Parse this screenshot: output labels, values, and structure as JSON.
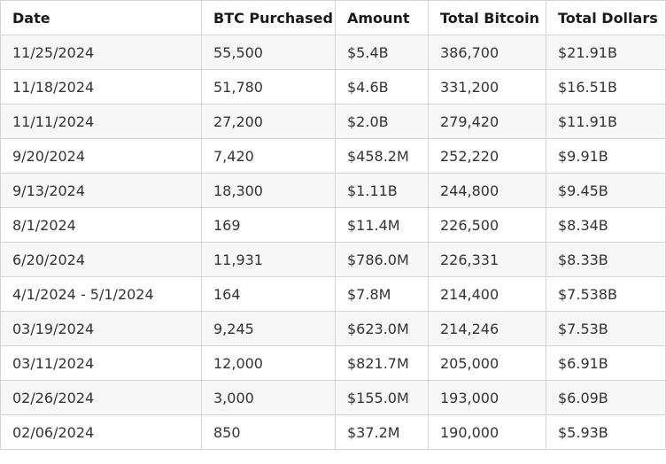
{
  "table": {
    "headers": [
      "Date",
      "BTC Purchased",
      "Amount",
      "Total Bitcoin",
      "Total Dollars"
    ],
    "rows": [
      [
        "11/25/2024",
        "55,500",
        "$5.4B",
        "386,700",
        "$21.91B"
      ],
      [
        "11/18/2024",
        "51,780",
        "$4.6B",
        "331,200",
        "$16.51B"
      ],
      [
        "11/11/2024",
        "27,200",
        "$2.0B",
        "279,420",
        "$11.91B"
      ],
      [
        "9/20/2024",
        "7,420",
        "$458.2M",
        "252,220",
        "$9.91B"
      ],
      [
        "9/13/2024",
        "18,300",
        "$1.11B",
        "244,800",
        "$9.45B"
      ],
      [
        "8/1/2024",
        "169",
        "$11.4M",
        "226,500",
        "$8.34B"
      ],
      [
        "6/20/2024",
        "11,931",
        "$786.0M",
        "226,331",
        "$8.33B"
      ],
      [
        "4/1/2024 - 5/1/2024",
        "164",
        "$7.8M",
        "214,400",
        "$7.538B"
      ],
      [
        "03/19/2024",
        "9,245",
        "$623.0M",
        "214,246",
        "$7.53B"
      ],
      [
        "03/11/2024",
        "12,000",
        "$821.7M",
        "205,000",
        "$6.91B"
      ],
      [
        "02/26/2024",
        "3,000",
        "$155.0M",
        "193,000",
        "$6.09B"
      ],
      [
        "02/06/2024",
        "850",
        "$37.2M",
        "190,000",
        "$5.93B"
      ]
    ]
  },
  "colors": {
    "border": "#d4d4d4",
    "striped_row": "#f7f7f7",
    "plain_row": "#ffffff",
    "header_text": "#1a1a1a",
    "cell_text": "#333333"
  }
}
